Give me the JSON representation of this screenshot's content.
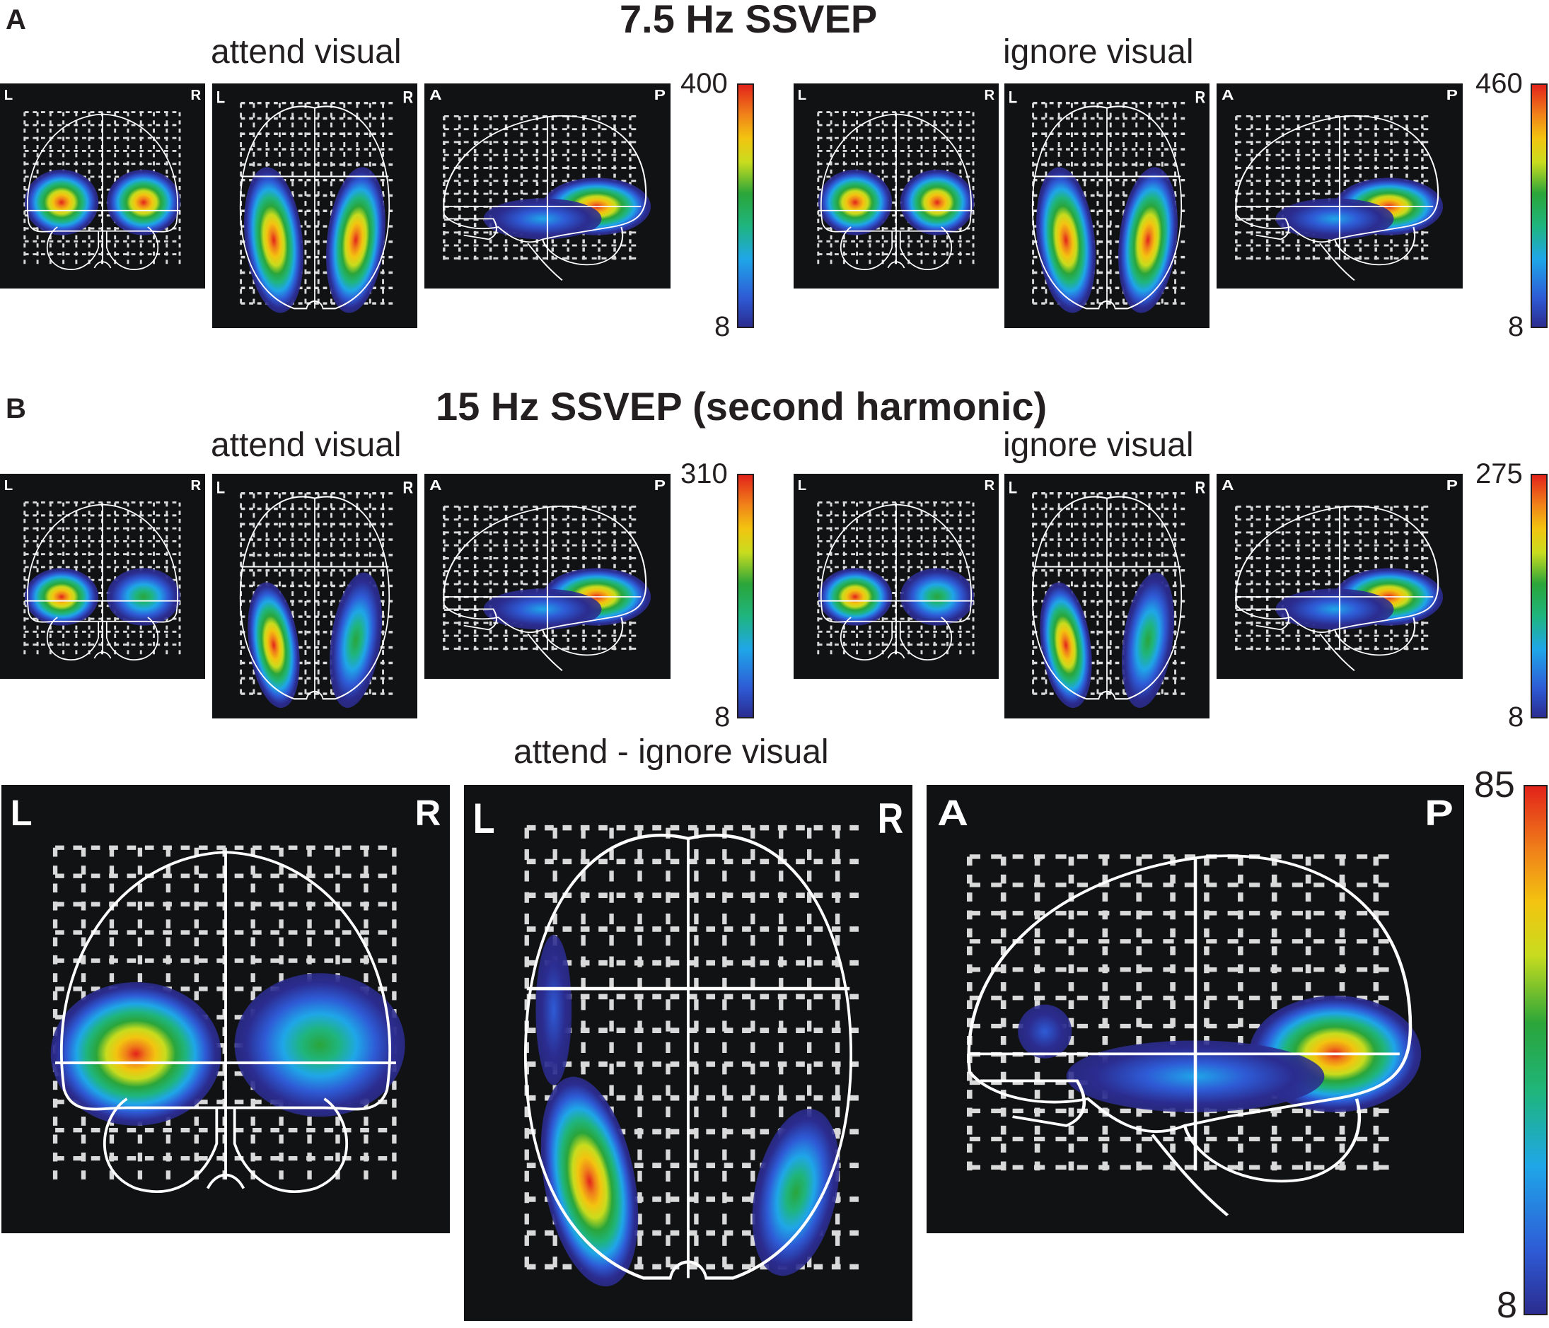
{
  "panels": [
    {
      "letter": "A",
      "title": "7.5 Hz SSVEP",
      "conditions": [
        "attend visual",
        "ignore visual"
      ],
      "colorbars": [
        {
          "max": "400",
          "min": "8"
        },
        {
          "max": "460",
          "min": "8"
        }
      ]
    },
    {
      "letter": "B",
      "title": "15 Hz SSVEP (second harmonic)",
      "conditions": [
        "attend visual",
        "ignore visual"
      ],
      "colorbars": [
        {
          "max": "310",
          "min": "8"
        },
        {
          "max": "275",
          "min": "8"
        }
      ]
    }
  ],
  "difference": {
    "title": "attend - ignore visual",
    "colorbar": {
      "max": "85",
      "min": "8"
    }
  },
  "views": {
    "coronal": {
      "left": "L",
      "right": "R"
    },
    "axial": {
      "left": "L",
      "right": "R"
    },
    "sagittal": {
      "left": "A",
      "right": "P"
    }
  },
  "colors": {
    "background": "#111214",
    "grid": "#d9d9d9",
    "outline": "#ffffff",
    "colormap": [
      "#2b2c8f",
      "#2e5bd6",
      "#1fa6e8",
      "#1fb57c",
      "#2aa53a",
      "#c8dc1e",
      "#f3c410",
      "#f0801a",
      "#e2231a"
    ]
  }
}
